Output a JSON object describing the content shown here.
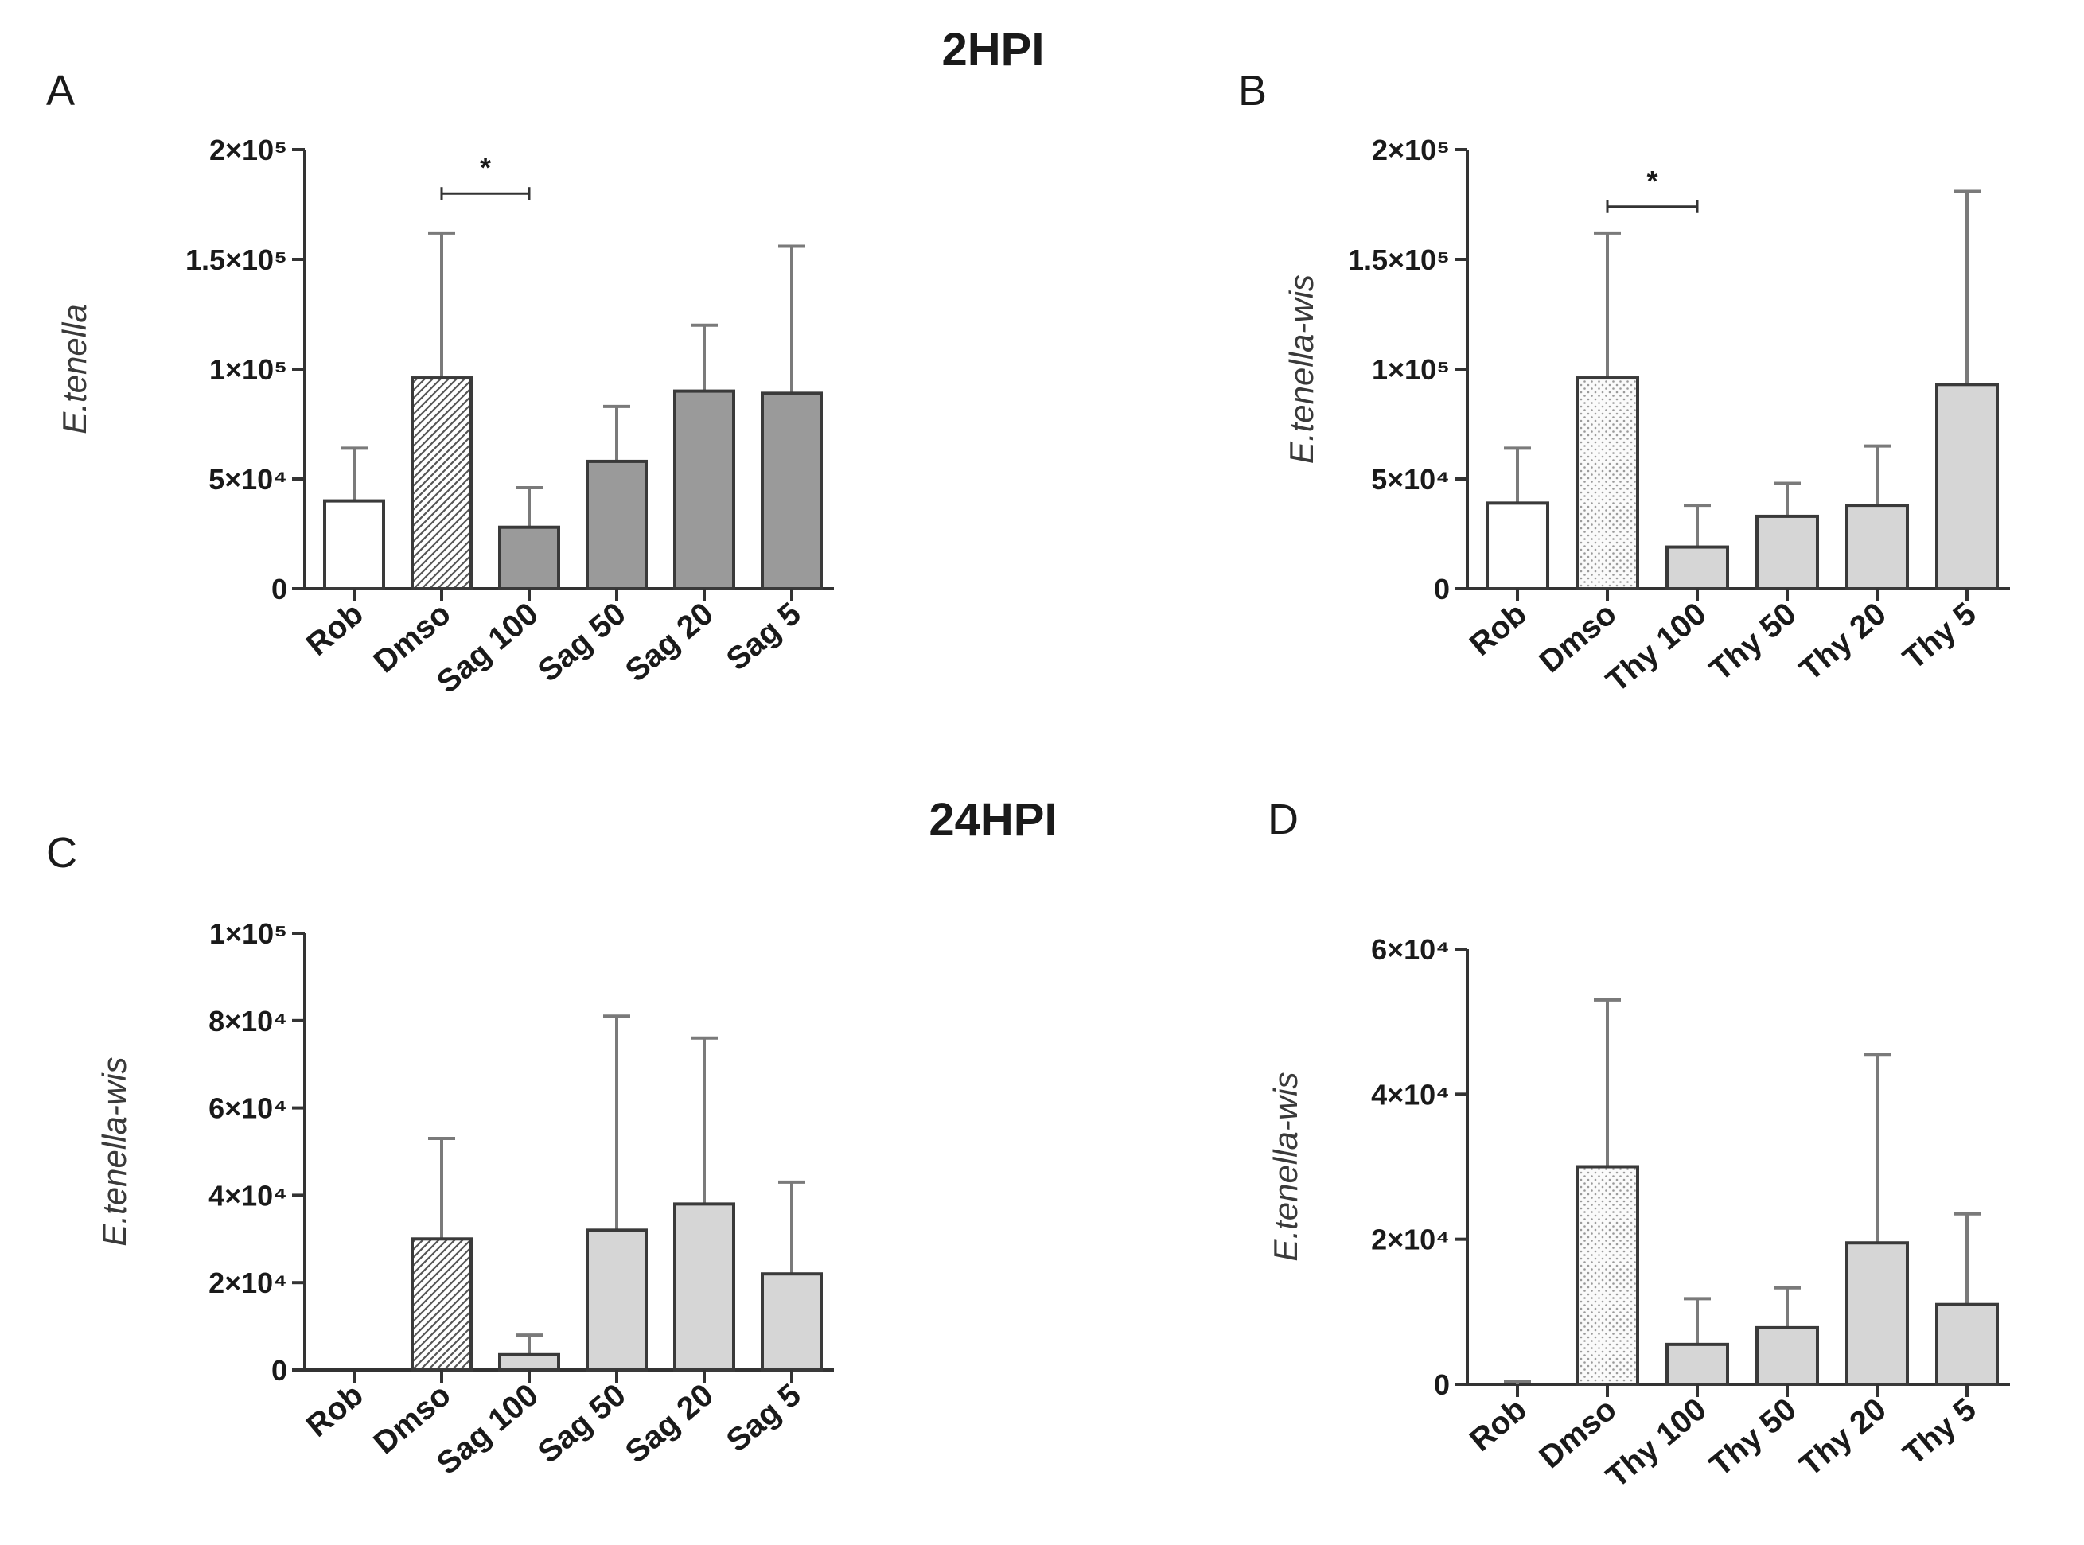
{
  "headings": {
    "top": "2HPI",
    "bottom": "24HPI"
  },
  "colors": {
    "axis": "#333333",
    "white_bar": "#ffffff",
    "dark_bar": "#9a9a9a",
    "light_bar": "#d6d6d6",
    "bar_stroke": "#3a3a3a",
    "error_bar": "#7a7a7a"
  },
  "chart_data": [
    {
      "type": "bar",
      "panel": "A",
      "title": "",
      "xlabel": "",
      "ylabel": "E.tenella",
      "ylim": [
        0,
        200000
      ],
      "yticks": [
        0,
        50000,
        100000,
        150000,
        200000
      ],
      "ytick_labels": [
        "0",
        "5×10⁴",
        "1×10⁵",
        "1.5×10⁵",
        "2×10⁵"
      ],
      "categories": [
        "Rob",
        "Dmso",
        "Sag 100",
        "Sag 50",
        "Sag 20",
        "Sag 5"
      ],
      "values": [
        40000,
        96000,
        28000,
        58000,
        90000,
        89000
      ],
      "errors": [
        64000,
        162000,
        46000,
        83000,
        120000,
        156000
      ],
      "fills": [
        "white",
        "hatch",
        "dark",
        "dark",
        "dark",
        "dark"
      ],
      "significance": [
        {
          "from": 1,
          "to": 2,
          "y": 180000,
          "label": "*"
        }
      ]
    },
    {
      "type": "bar",
      "panel": "B",
      "title": "",
      "xlabel": "",
      "ylabel": "E.tenella-wis",
      "ylim": [
        0,
        200000
      ],
      "yticks": [
        0,
        50000,
        100000,
        150000,
        200000
      ],
      "ytick_labels": [
        "0",
        "5×10⁴",
        "1×10⁵",
        "1.5×10⁵",
        "2×10⁵"
      ],
      "categories": [
        "Rob",
        "Dmso",
        "Thy 100",
        "Thy 50",
        "Thy 20",
        "Thy 5"
      ],
      "values": [
        39000,
        96000,
        19000,
        33000,
        38000,
        93000
      ],
      "errors": [
        64000,
        162000,
        38000,
        48000,
        65000,
        181000
      ],
      "fills": [
        "white",
        "dots",
        "light",
        "light",
        "light",
        "light"
      ],
      "significance": [
        {
          "from": 1,
          "to": 2,
          "y": 174000,
          "label": "*"
        }
      ]
    },
    {
      "type": "bar",
      "panel": "C",
      "title": "",
      "xlabel": "",
      "ylabel": "E.tenella-wis",
      "ylim": [
        0,
        100000
      ],
      "yticks": [
        0,
        20000,
        40000,
        60000,
        80000,
        100000
      ],
      "ytick_labels": [
        "0",
        "2×10⁴",
        "4×10⁴",
        "6×10⁴",
        "8×10⁴",
        "1×10⁵"
      ],
      "categories": [
        "Rob",
        "Dmso",
        "Sag 100",
        "Sag 50",
        "Sag 20",
        "Sag 5"
      ],
      "values": [
        0,
        30000,
        3500,
        32000,
        38000,
        22000
      ],
      "errors": [
        0,
        53000,
        8000,
        81000,
        76000,
        43000
      ],
      "fills": [
        "white",
        "hatch",
        "light",
        "light",
        "light",
        "light"
      ],
      "significance": []
    },
    {
      "type": "bar",
      "panel": "D",
      "title": "",
      "xlabel": "",
      "ylabel": "E.tenella-wis",
      "ylim": [
        0,
        60000
      ],
      "yticks": [
        0,
        20000,
        40000,
        60000
      ],
      "ytick_labels": [
        "0",
        "2×10⁴",
        "4×10⁴",
        "6×10⁴"
      ],
      "categories": [
        "Rob",
        "Dmso",
        "Thy 100",
        "Thy 50",
        "Thy 20",
        "Thy 5"
      ],
      "values": [
        0,
        30000,
        5500,
        7800,
        19500,
        11000
      ],
      "errors": [
        400,
        53000,
        11800,
        13300,
        45500,
        23500
      ],
      "fills": [
        "white",
        "dots",
        "light",
        "light",
        "light",
        "light"
      ],
      "significance": []
    }
  ]
}
